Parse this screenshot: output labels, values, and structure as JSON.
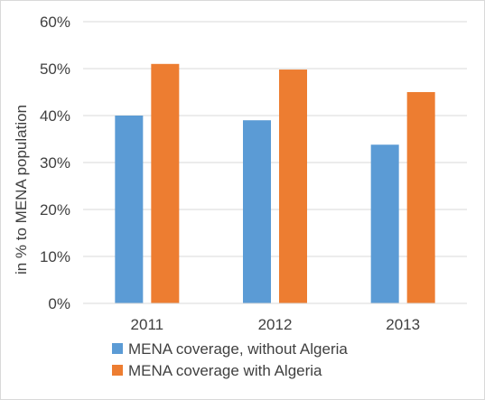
{
  "chart_data": {
    "type": "bar",
    "title": "",
    "xlabel": "",
    "ylabel": "in % to MENA population",
    "categories": [
      "2011",
      "2012",
      "2013"
    ],
    "series": [
      {
        "name": "MENA coverage, without Algeria",
        "values": [
          40,
          39,
          33.8
        ],
        "color": "#5b9bd5"
      },
      {
        "name": "MENA coverage with Algeria",
        "values": [
          51,
          49.8,
          45
        ],
        "color": "#ed7d31"
      }
    ],
    "ylim": [
      0,
      60
    ],
    "yticks": [
      "0%",
      "10%",
      "20%",
      "30%",
      "40%",
      "50%",
      "60%"
    ],
    "grid": true,
    "legend": "bottom"
  }
}
